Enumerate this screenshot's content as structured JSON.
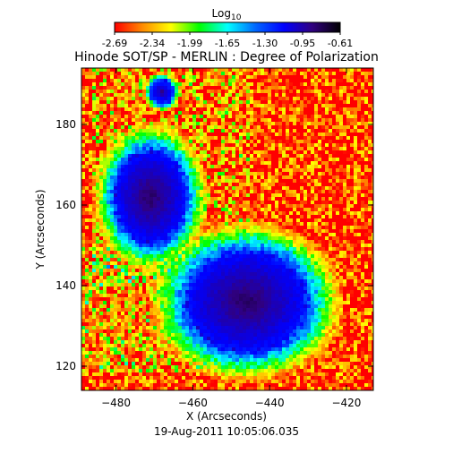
{
  "chart_data": {
    "type": "heatmap",
    "title": "Hinode SOT/SP - MERLIN : Degree of Polarization",
    "subtitle": "19-Aug-2011 10:05:06.035",
    "xlabel": "X (Arcseconds)",
    "ylabel": "Y (Arcseconds)",
    "xlim": [
      -489,
      -413
    ],
    "ylim": [
      114,
      194
    ],
    "x_ticks": [
      -480,
      -460,
      -440,
      -420
    ],
    "y_ticks": [
      120,
      140,
      160,
      180
    ],
    "colorbar": {
      "title_base": "Log",
      "title_sub": "10",
      "range": [
        -2.69,
        -0.61
      ],
      "tick_labels": [
        "-2.69",
        "-2.34",
        "-1.99",
        "-1.65",
        "-1.30",
        "-0.95",
        "-0.61"
      ],
      "colormap": [
        "#ff0000",
        "#ff8c00",
        "#ffff00",
        "#00ff00",
        "#00ffff",
        "#0066ff",
        "#0000ff",
        "#300080",
        "#000000"
      ]
    },
    "features": [
      {
        "label": "sunspot",
        "center": [
          -471,
          162
        ],
        "radius": [
          9,
          11
        ],
        "value": -0.8
      },
      {
        "label": "sunspot",
        "center": [
          -446,
          136
        ],
        "radius": [
          15,
          12
        ],
        "value": -0.8
      },
      {
        "label": "pore",
        "center": [
          -468,
          188
        ],
        "radius": [
          3,
          3
        ],
        "value": -0.9
      }
    ],
    "background_value": -2.6
  }
}
